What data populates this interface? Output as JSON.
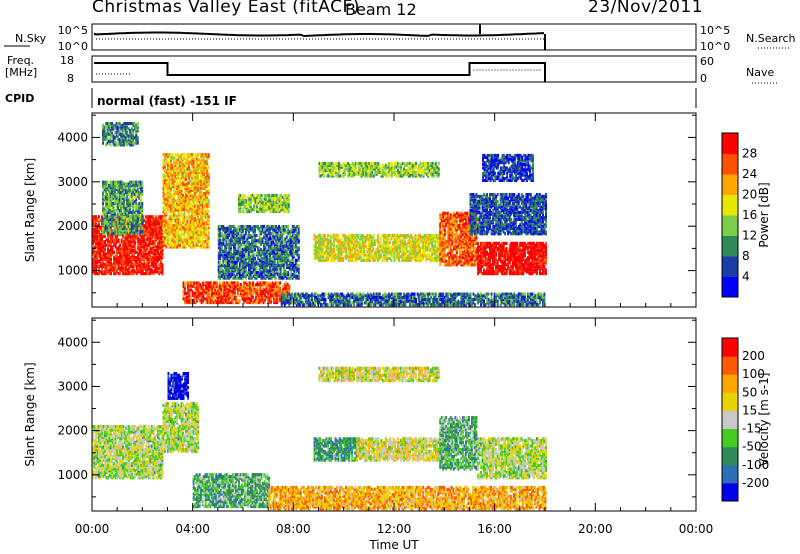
{
  "header": {
    "title": "Christmas Valley East (fitACF)",
    "beam": "Beam 12",
    "date": "23/Nov/2011"
  },
  "strips": {
    "nsky": {
      "label": "N.Sky",
      "ticks": [
        "10^5",
        "10^0"
      ]
    },
    "nsearch": {
      "label": "N.Search",
      "ticks": [
        "10^5",
        "10^0"
      ]
    },
    "freq": {
      "label_line1": "Freq.",
      "label_line2": "[MHz]",
      "ticks": [
        "18",
        "8"
      ]
    },
    "nave": {
      "label": "Nave",
      "ticks": [
        "60",
        "0"
      ]
    },
    "cpid": {
      "label": "CPID",
      "value": "normal (fast) -151 IF"
    }
  },
  "chart_data": [
    {
      "type": "heatmap",
      "name": "power",
      "xlabel": "",
      "ylabel": "Slant Range [km]",
      "x_ticks": [
        "00:00",
        "04:00",
        "08:00",
        "12:00",
        "16:00",
        "20:00",
        "00:00"
      ],
      "x_range_hours": [
        0,
        24
      ],
      "data_end_hours": 18,
      "y_ticks": [
        1000,
        2000,
        3000,
        4000
      ],
      "ylim": [
        180,
        4550
      ],
      "colorbar": {
        "label": "Power [dB]",
        "ticks": [
          4,
          8,
          12,
          16,
          20,
          24,
          28
        ],
        "colors": [
          "#0000ff",
          "#1e3ca8",
          "#2e8b57",
          "#7ccd4a",
          "#e6e600",
          "#ffa500",
          "#ff5000",
          "#ff0000"
        ]
      },
      "regions": [
        {
          "t0": 0.0,
          "t1": 2.8,
          "r0": 900,
          "r1": 2200,
          "level": 0.95
        },
        {
          "t0": 0.4,
          "t1": 2.0,
          "r0": 1800,
          "r1": 3000,
          "level": 0.35
        },
        {
          "t0": 0.4,
          "t1": 1.8,
          "r0": 3800,
          "r1": 4300,
          "level": 0.3
        },
        {
          "t0": 2.8,
          "t1": 4.6,
          "r0": 1500,
          "r1": 3600,
          "level": 0.65
        },
        {
          "t0": 3.6,
          "t1": 7.8,
          "r0": 250,
          "r1": 700,
          "level": 0.85
        },
        {
          "t0": 5.0,
          "t1": 8.2,
          "r0": 800,
          "r1": 2000,
          "level": 0.25
        },
        {
          "t0": 5.8,
          "t1": 7.8,
          "r0": 2300,
          "r1": 2700,
          "level": 0.45
        },
        {
          "t0": 8.8,
          "t1": 14.0,
          "r0": 1200,
          "r1": 1800,
          "level": 0.55
        },
        {
          "t0": 9.0,
          "t1": 13.8,
          "r0": 3100,
          "r1": 3400,
          "level": 0.45
        },
        {
          "t0": 7.5,
          "t1": 18.0,
          "r0": 200,
          "r1": 450,
          "level": 0.25
        },
        {
          "t0": 13.8,
          "t1": 15.3,
          "r0": 1100,
          "r1": 2300,
          "level": 0.8
        },
        {
          "t0": 15.3,
          "t1": 18.0,
          "r0": 900,
          "r1": 1600,
          "level": 1.0
        },
        {
          "t0": 15.0,
          "t1": 18.0,
          "r0": 1800,
          "r1": 2700,
          "level": 0.2
        },
        {
          "t0": 15.5,
          "t1": 17.5,
          "r0": 3000,
          "r1": 3600,
          "level": 0.15
        }
      ]
    },
    {
      "type": "heatmap",
      "name": "velocity",
      "xlabel": "Time UT",
      "ylabel": "Slant Range [km]",
      "x_ticks": [
        "00:00",
        "04:00",
        "08:00",
        "12:00",
        "16:00",
        "20:00",
        "00:00"
      ],
      "x_range_hours": [
        0,
        24
      ],
      "data_end_hours": 18,
      "y_ticks": [
        1000,
        2000,
        3000,
        4000
      ],
      "ylim": [
        180,
        4550
      ],
      "colorbar": {
        "label": "Velocity [m s-1]",
        "ticks": [
          200,
          100,
          50,
          15,
          -15,
          -50,
          -100,
          -200
        ],
        "colors": [
          "#0000e6",
          "#2d6eb4",
          "#2e8b57",
          "#44cc22",
          "#c8c8c8",
          "#e6d400",
          "#ffa500",
          "#ff5a00",
          "#ff0000"
        ]
      },
      "regions": [
        {
          "t0": 0.0,
          "t1": 2.8,
          "r0": 900,
          "r1": 2100,
          "level": 0.5
        },
        {
          "t0": 2.8,
          "t1": 4.2,
          "r0": 1500,
          "r1": 2600,
          "level": 0.5
        },
        {
          "t0": 3.0,
          "t1": 3.8,
          "r0": 2700,
          "r1": 3300,
          "level": 0.0
        },
        {
          "t0": 4.0,
          "t1": 7.0,
          "r0": 250,
          "r1": 1000,
          "level": 0.35
        },
        {
          "t0": 8.8,
          "t1": 10.5,
          "r0": 1300,
          "r1": 1800,
          "level": 0.3
        },
        {
          "t0": 10.5,
          "t1": 14.0,
          "r0": 1300,
          "r1": 1800,
          "level": 0.55
        },
        {
          "t0": 9.0,
          "t1": 13.8,
          "r0": 3100,
          "r1": 3400,
          "level": 0.55
        },
        {
          "t0": 7.0,
          "t1": 18.0,
          "r0": 200,
          "r1": 700,
          "level": 0.7
        },
        {
          "t0": 13.8,
          "t1": 15.3,
          "r0": 1100,
          "r1": 2300,
          "level": 0.35
        },
        {
          "t0": 15.3,
          "t1": 18.0,
          "r0": 900,
          "r1": 1800,
          "level": 0.5
        }
      ]
    }
  ]
}
